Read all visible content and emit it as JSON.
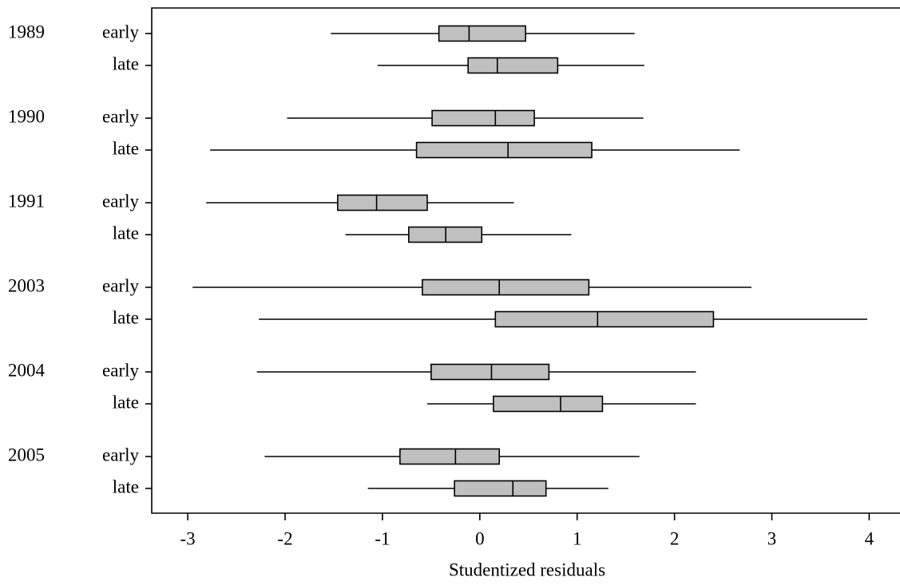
{
  "chart_data": {
    "type": "boxplot",
    "orientation": "horizontal",
    "x_label": "Studentized residuals",
    "xlim": [
      -3.37,
      4.3
    ],
    "xticks": [
      -3,
      -2,
      -1,
      0,
      1,
      2,
      3,
      4
    ],
    "color": "#c0c0c0",
    "groups": [
      {
        "name": "1989",
        "boxes": [
          {
            "label": "early",
            "whislo": -1.53,
            "q1": -0.42,
            "med": -0.11,
            "q3": 0.47,
            "whishi": 1.59
          },
          {
            "label": "late",
            "whislo": -1.05,
            "q1": -0.12,
            "med": 0.18,
            "q3": 0.8,
            "whishi": 1.69
          }
        ]
      },
      {
        "name": "1990",
        "boxes": [
          {
            "label": "early",
            "whislo": -1.98,
            "q1": -0.49,
            "med": 0.16,
            "q3": 0.56,
            "whishi": 1.68
          },
          {
            "label": "late",
            "whislo": -2.77,
            "q1": -0.65,
            "med": 0.29,
            "q3": 1.15,
            "whishi": 2.67
          }
        ]
      },
      {
        "name": "1991",
        "boxes": [
          {
            "label": "early",
            "whislo": -2.81,
            "q1": -1.46,
            "med": -1.06,
            "q3": -0.54,
            "whishi": 0.35
          },
          {
            "label": "late",
            "whislo": -1.38,
            "q1": -0.73,
            "med": -0.35,
            "q3": 0.02,
            "whishi": 0.94
          }
        ]
      },
      {
        "name": "2003",
        "boxes": [
          {
            "label": "early",
            "whislo": -2.95,
            "q1": -0.59,
            "med": 0.2,
            "q3": 1.12,
            "whishi": 2.79
          },
          {
            "label": "late",
            "whislo": -2.27,
            "q1": 0.16,
            "med": 1.21,
            "q3": 2.4,
            "whishi": 3.98
          }
        ]
      },
      {
        "name": "2004",
        "boxes": [
          {
            "label": "early",
            "whislo": -2.29,
            "q1": -0.5,
            "med": 0.12,
            "q3": 0.71,
            "whishi": 2.22
          },
          {
            "label": "late",
            "whislo": -0.54,
            "q1": 0.14,
            "med": 0.83,
            "q3": 1.26,
            "whishi": 2.22
          }
        ]
      },
      {
        "name": "2005",
        "boxes": [
          {
            "label": "early",
            "whislo": -2.21,
            "q1": -0.82,
            "med": -0.25,
            "q3": 0.2,
            "whishi": 1.64
          },
          {
            "label": "late",
            "whislo": -1.15,
            "q1": -0.26,
            "med": 0.34,
            "q3": 0.68,
            "whishi": 1.32
          }
        ]
      }
    ]
  }
}
